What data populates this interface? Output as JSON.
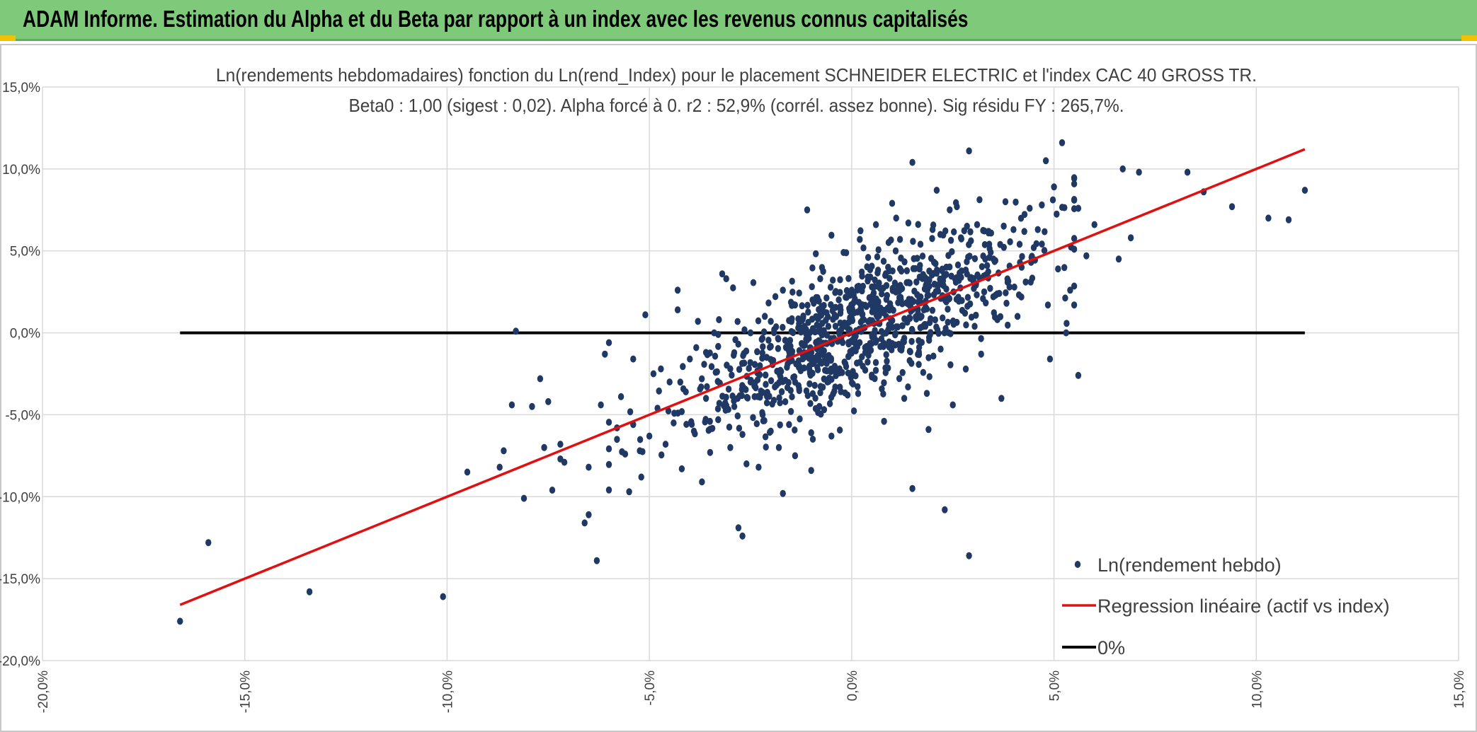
{
  "banner": {
    "title": "ADAM Informe. Estimation du Alpha et du Beta par rapport à un index avec les revenus connus capitalisés"
  },
  "chart_data": {
    "type": "scatter",
    "title": "Ln(rendements hebdomadaires) fonction du Ln(rend_Index) pour le placement SCHNEIDER ELECTRIC et l'index CAC 40 GROSS TR.",
    "subtitle": "Beta0 : 1,00 (sigest : 0,02). Alpha forcé à 0. r2 : 52,9% (corrél. assez bonne). Sig résidu FY : 265,7%.",
    "xlabel": "",
    "ylabel": "",
    "xlim": [
      -0.2,
      0.15
    ],
    "ylim": [
      -0.2,
      0.15
    ],
    "x_ticks": [
      -0.2,
      -0.15,
      -0.1,
      -0.05,
      0.0,
      0.05,
      0.1,
      0.15
    ],
    "y_ticks": [
      -0.2,
      -0.15,
      -0.1,
      -0.05,
      0.0,
      0.05,
      0.1,
      0.15
    ],
    "x_tick_labels": [
      "-20,0%",
      "-15,0%",
      "-10,0%",
      "-5,0%",
      "0,0%",
      "5,0%",
      "10,0%",
      "15,0%"
    ],
    "y_tick_labels": [
      "-20,0%",
      "-15,0%",
      "-10,0%",
      "-5,0%",
      "0,0%",
      "5,0%",
      "10,0%",
      "15,0%"
    ],
    "grid": true,
    "legend_position": "bottom-right",
    "series": [
      {
        "name": "Ln(rendement hebdo)",
        "kind": "scatter",
        "color": "#203864",
        "points": [
          [
            -0.166,
            -0.176
          ],
          [
            -0.159,
            -0.128
          ],
          [
            -0.134,
            -0.158
          ],
          [
            -0.101,
            -0.161
          ],
          [
            -0.095,
            -0.085
          ],
          [
            -0.087,
            -0.082
          ],
          [
            -0.086,
            -0.072
          ],
          [
            -0.084,
            -0.044
          ],
          [
            -0.083,
            0.001
          ],
          [
            -0.081,
            -0.101
          ],
          [
            -0.079,
            -0.045
          ],
          [
            -0.077,
            -0.028
          ],
          [
            -0.076,
            -0.07
          ],
          [
            -0.075,
            -0.042
          ],
          [
            -0.074,
            -0.096
          ],
          [
            -0.072,
            -0.077
          ],
          [
            -0.072,
            -0.068
          ],
          [
            -0.071,
            -0.079
          ],
          [
            -0.066,
            -0.116
          ],
          [
            -0.065,
            -0.111
          ],
          [
            -0.065,
            -0.082
          ],
          [
            -0.063,
            -0.139
          ],
          [
            -0.062,
            -0.044
          ],
          [
            -0.061,
            -0.013
          ],
          [
            -0.06,
            -0.006
          ],
          [
            -0.058,
            -0.058
          ],
          [
            -0.058,
            -0.065
          ],
          [
            -0.057,
            -0.039
          ],
          [
            -0.056,
            -0.074
          ],
          [
            -0.055,
            -0.097
          ],
          [
            -0.054,
            -0.056
          ],
          [
            -0.054,
            -0.016
          ],
          [
            -0.052,
            -0.088
          ],
          [
            -0.051,
            0.011
          ],
          [
            -0.05,
            -0.063
          ],
          [
            -0.049,
            -0.025
          ],
          [
            -0.048,
            -0.046
          ],
          [
            -0.046,
            -0.068
          ],
          [
            -0.045,
            -0.03
          ],
          [
            -0.044,
            -0.055
          ],
          [
            -0.043,
            0.026
          ],
          [
            -0.043,
            0.014
          ],
          [
            -0.042,
            -0.083
          ],
          [
            -0.041,
            -0.036
          ],
          [
            -0.04,
            -0.016
          ],
          [
            -0.039,
            -0.06
          ],
          [
            -0.038,
            0.007
          ],
          [
            -0.037,
            -0.091
          ],
          [
            -0.036,
            -0.04
          ],
          [
            -0.036,
            -0.012
          ],
          [
            -0.035,
            -0.073
          ],
          [
            -0.034,
            0.0
          ],
          [
            -0.033,
            -0.053
          ],
          [
            -0.032,
            0.036
          ],
          [
            -0.031,
            0.033
          ],
          [
            -0.03,
            -0.07
          ],
          [
            -0.03,
            -0.022
          ],
          [
            -0.029,
            -0.045
          ],
          [
            -0.028,
            -0.119
          ],
          [
            -0.027,
            -0.124
          ],
          [
            -0.027,
            -0.062
          ],
          [
            -0.026,
            -0.08
          ],
          [
            -0.025,
            -0.03
          ],
          [
            -0.025,
            0.0
          ],
          [
            -0.024,
            -0.039
          ],
          [
            -0.023,
            -0.082
          ],
          [
            -0.022,
            -0.05
          ],
          [
            -0.021,
            -0.015
          ],
          [
            -0.02,
            -0.06
          ],
          [
            -0.02,
            0.007
          ],
          [
            -0.019,
            -0.033
          ],
          [
            -0.018,
            -0.07
          ],
          [
            -0.017,
            -0.098
          ],
          [
            -0.017,
            0.026
          ],
          [
            -0.016,
            -0.021
          ],
          [
            -0.015,
            -0.048
          ],
          [
            -0.014,
            -0.075
          ],
          [
            -0.014,
            0.017
          ],
          [
            -0.013,
            -0.034
          ],
          [
            -0.012,
            -0.007
          ],
          [
            -0.011,
            0.075
          ],
          [
            -0.01,
            -0.061
          ],
          [
            -0.01,
            -0.084
          ],
          [
            -0.009,
            -0.017
          ],
          [
            -0.008,
            -0.045
          ],
          [
            -0.007,
            0.013
          ],
          [
            -0.006,
            -0.03
          ],
          [
            -0.005,
            -0.063
          ],
          [
            -0.004,
            0.004
          ],
          [
            -0.003,
            -0.022
          ],
          [
            -0.002,
            0.049
          ],
          [
            -0.001,
            -0.038
          ],
          [
            0.0,
            0.026
          ],
          [
            0.001,
            -0.011
          ],
          [
            0.002,
            0.057
          ],
          [
            0.003,
            0.008
          ],
          [
            0.004,
            0.034
          ],
          [
            0.005,
            -0.027
          ],
          [
            0.006,
            0.066
          ],
          [
            0.007,
            0.015
          ],
          [
            0.008,
            -0.054
          ],
          [
            0.009,
            0.04
          ],
          [
            0.01,
            0.079
          ],
          [
            0.011,
            0.07
          ],
          [
            0.012,
            -0.01
          ],
          [
            0.013,
            -0.04
          ],
          [
            0.014,
            0.067
          ],
          [
            0.015,
            -0.095
          ],
          [
            0.015,
            0.104
          ],
          [
            0.016,
            0.031
          ],
          [
            0.017,
            0.054
          ],
          [
            0.018,
            0.005
          ],
          [
            0.019,
            -0.059
          ],
          [
            0.02,
            0.063
          ],
          [
            0.021,
            0.087
          ],
          [
            0.022,
            0.021
          ],
          [
            0.023,
            -0.108
          ],
          [
            0.024,
            0.0
          ],
          [
            0.025,
            -0.044
          ],
          [
            0.026,
            0.077
          ],
          [
            0.027,
            0.058
          ],
          [
            0.028,
            0.012
          ],
          [
            0.029,
            0.111
          ],
          [
            0.029,
            -0.136
          ],
          [
            0.03,
            0.032
          ],
          [
            0.031,
            0.066
          ],
          [
            0.032,
            -0.013
          ],
          [
            0.033,
            0.045
          ],
          [
            0.034,
            0.054
          ],
          [
            0.035,
            0.022
          ],
          [
            0.036,
            0.008
          ],
          [
            0.037,
            -0.04
          ],
          [
            0.038,
            0.08
          ],
          [
            0.039,
            0.028
          ],
          [
            0.04,
            0.063
          ],
          [
            0.041,
            0.01
          ],
          [
            0.042,
            0.04
          ],
          [
            0.043,
            0.031
          ],
          [
            0.044,
            0.076
          ],
          [
            0.045,
            0.052
          ],
          [
            0.046,
            0.063
          ],
          [
            0.047,
            0.078
          ],
          [
            0.048,
            0.105
          ],
          [
            0.049,
            -0.016
          ],
          [
            0.05,
            0.089
          ],
          [
            0.051,
            0.039
          ],
          [
            0.052,
            0.116
          ],
          [
            0.053,
            0.0
          ],
          [
            0.054,
            0.026
          ],
          [
            0.055,
            0.051
          ],
          [
            0.056,
            0.076
          ],
          [
            0.056,
            -0.026
          ],
          [
            0.058,
            0.047
          ],
          [
            0.06,
            0.066
          ],
          [
            0.066,
            0.045
          ],
          [
            0.067,
            0.1
          ],
          [
            0.069,
            0.058
          ],
          [
            0.071,
            0.098
          ],
          [
            0.083,
            0.098
          ],
          [
            0.087,
            0.086
          ],
          [
            0.094,
            0.077
          ],
          [
            0.103,
            0.07
          ],
          [
            0.108,
            0.069
          ],
          [
            0.112,
            0.087
          ]
        ]
      },
      {
        "name": "Regression linéaire (actif vs index)",
        "kind": "line",
        "color": "#e01010",
        "points": [
          [
            -0.166,
            -0.166
          ],
          [
            0.112,
            0.112
          ]
        ]
      },
      {
        "name": "0%",
        "kind": "line",
        "color": "#000000",
        "points": [
          [
            -0.166,
            0.0
          ],
          [
            0.112,
            0.0
          ]
        ]
      }
    ],
    "cloud": {
      "description_note": "",
      "center": [
        0.003,
        0.004
      ],
      "count": 900,
      "beta": 1.0,
      "x_sigma": 0.022,
      "resid_sigma": 0.024
    }
  }
}
